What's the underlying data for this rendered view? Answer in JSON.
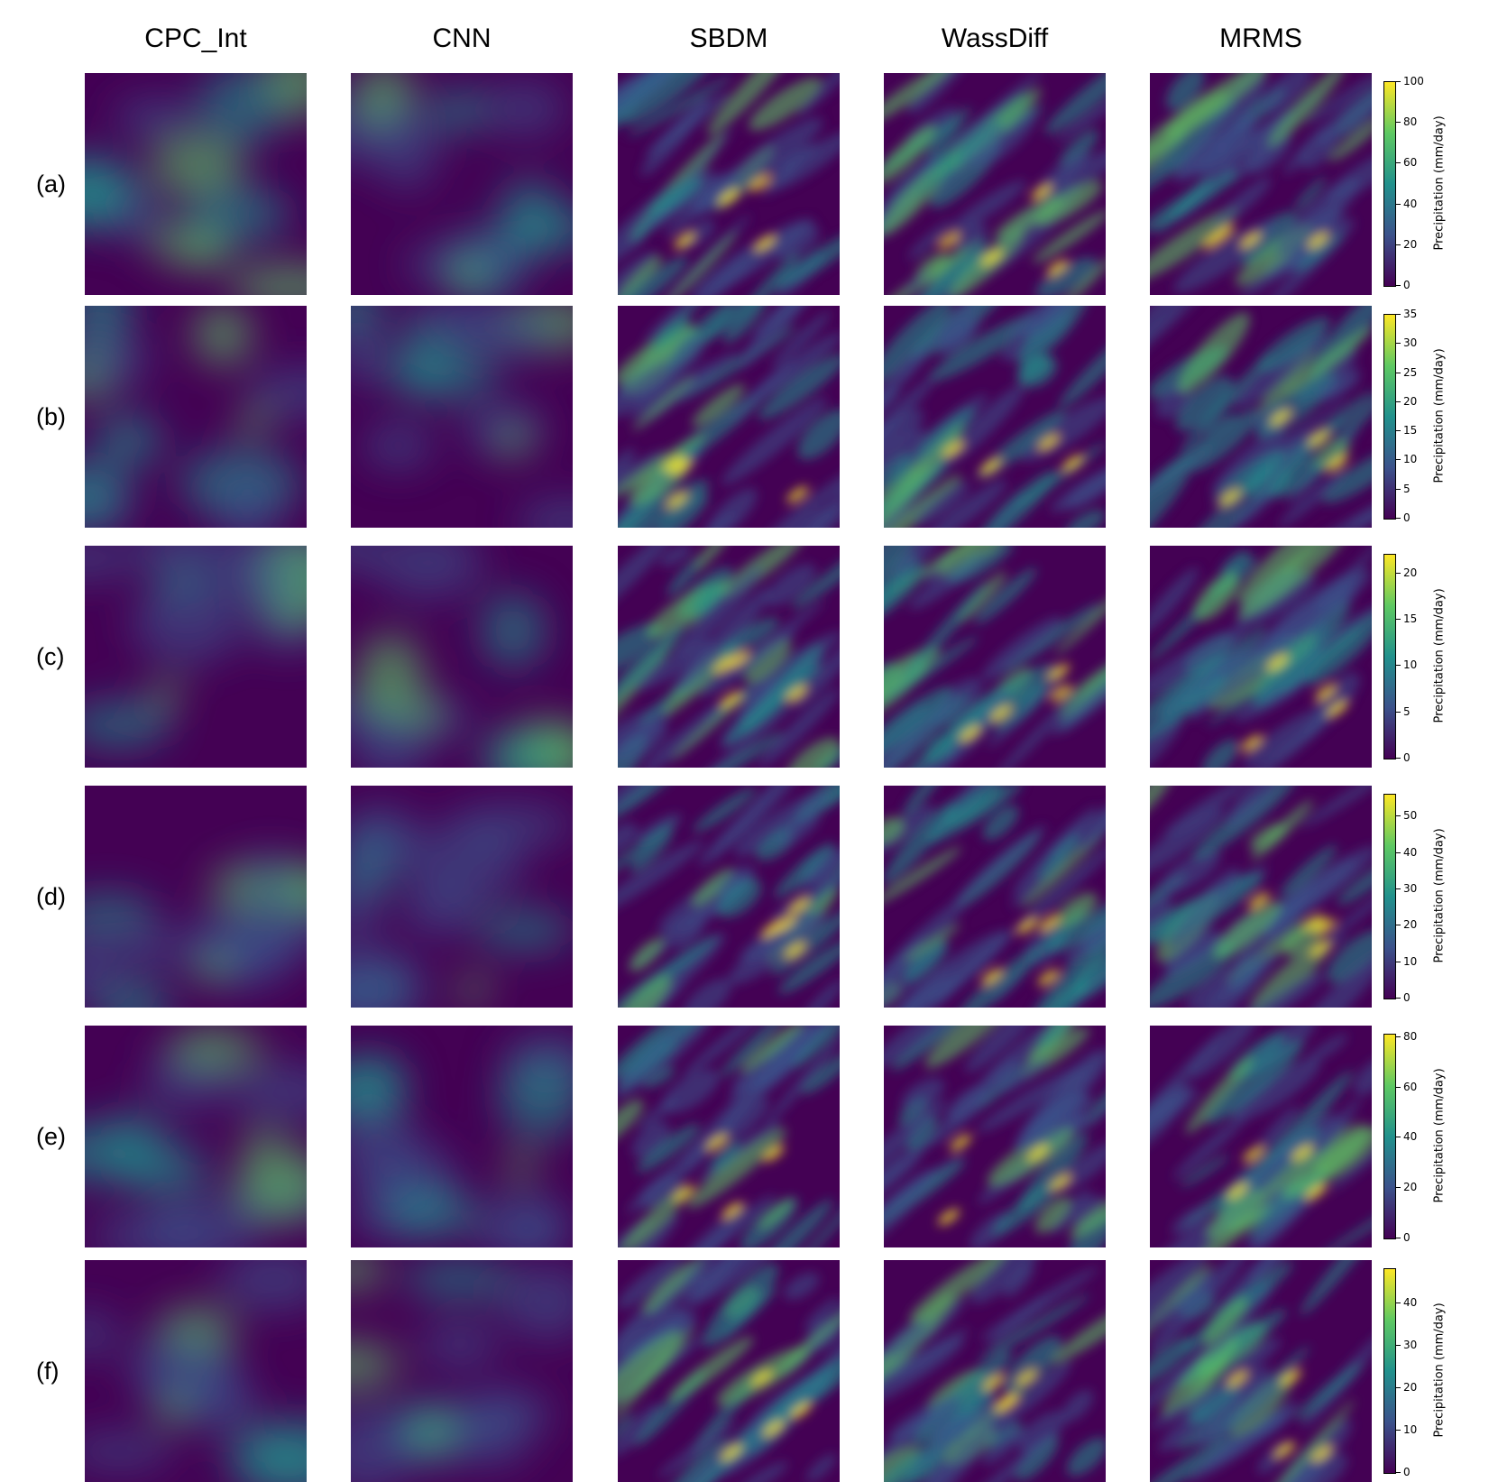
{
  "columns": [
    "CPC_Int",
    "CNN",
    "SBDM",
    "WassDiff",
    "MRMS"
  ],
  "rows": [
    {
      "label": "(a)",
      "colorbar": {
        "ticks": [
          "0",
          "20",
          "40",
          "60",
          "80",
          "100"
        ],
        "max": 100,
        "label": "Precipitation (mm/day)"
      }
    },
    {
      "label": "(b)",
      "colorbar": {
        "ticks": [
          "0",
          "5",
          "10",
          "15",
          "20",
          "25",
          "30",
          "35"
        ],
        "max": 35,
        "label": "Precipitation (mm/day)"
      }
    },
    {
      "label": "(c)",
      "colorbar": {
        "ticks": [
          "0",
          "5",
          "10",
          "15",
          "20"
        ],
        "max": 22,
        "label": "Precipitation (mm/day)"
      }
    },
    {
      "label": "(d)",
      "colorbar": {
        "ticks": [
          "0",
          "10",
          "20",
          "30",
          "40",
          "50"
        ],
        "max": 56,
        "label": "Precipitation (mm/day)"
      }
    },
    {
      "label": "(e)",
      "colorbar": {
        "ticks": [
          "0",
          "20",
          "40",
          "60",
          "80"
        ],
        "max": 81,
        "label": "Precipitation (mm/day)"
      }
    },
    {
      "label": "(f)",
      "colorbar": {
        "ticks": [
          "0",
          "10",
          "20",
          "30",
          "40"
        ],
        "max": 48,
        "label": "Precipitation (mm/day)"
      }
    }
  ],
  "colormap": [
    "#440154",
    "#3b528b",
    "#21918c",
    "#5ec962",
    "#fde725"
  ]
}
